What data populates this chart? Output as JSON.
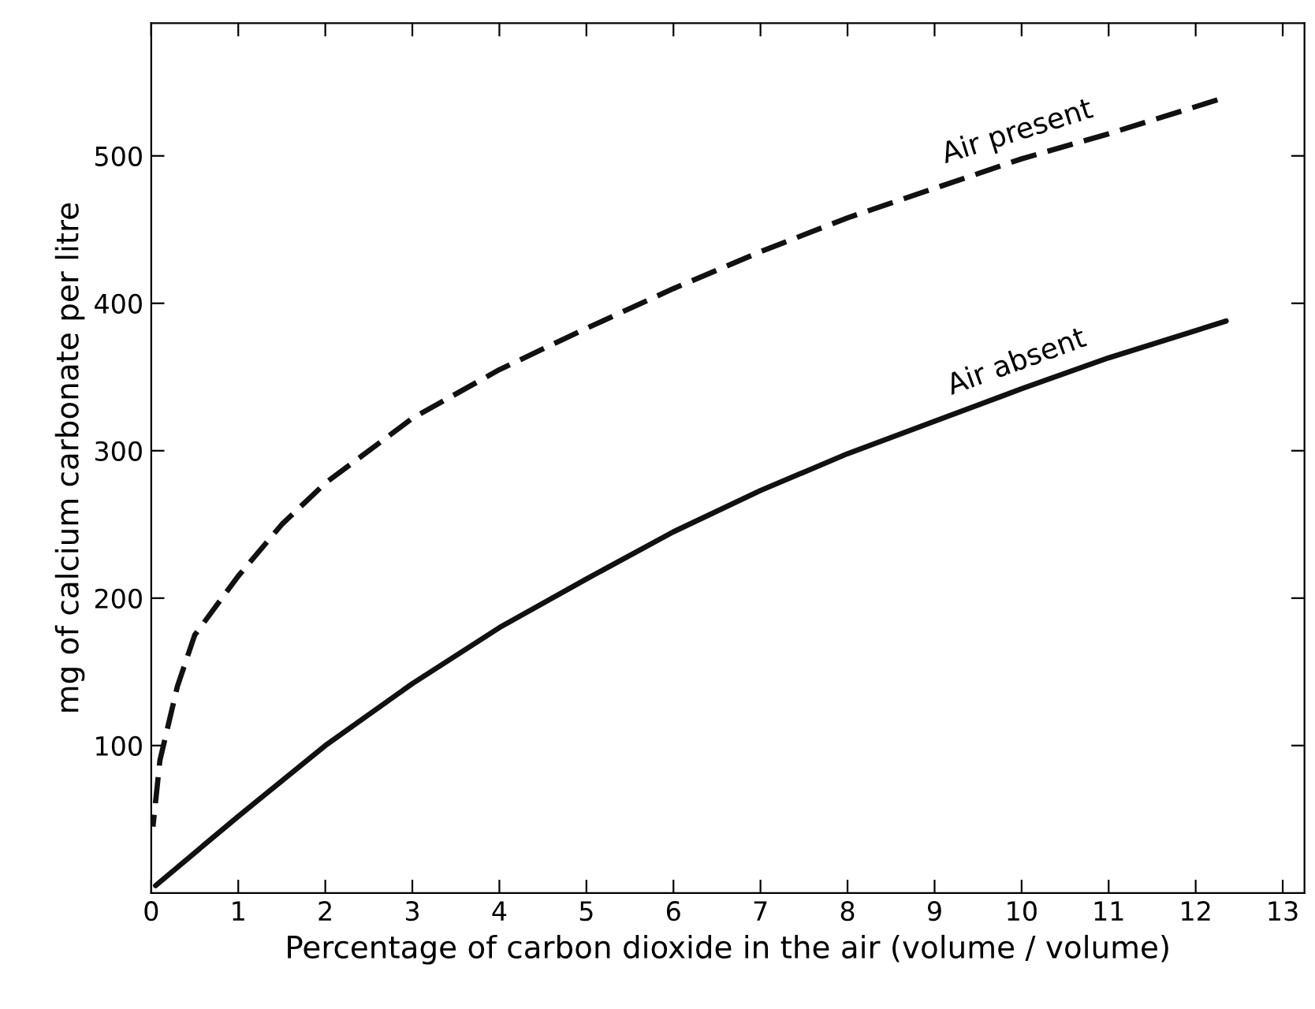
{
  "chart_data": {
    "type": "line",
    "xlabel": "Percentage of carbon dioxide in the air (volume / volume)",
    "ylabel": "mg of calcium carbonate per litre",
    "xlim": [
      0,
      13.25
    ],
    "ylim": [
      0,
      590
    ],
    "xticks": [
      0,
      1,
      2,
      3,
      4,
      5,
      6,
      7,
      8,
      9,
      10,
      11,
      12,
      13
    ],
    "yticks": [
      100,
      200,
      300,
      400,
      500
    ],
    "grid": false,
    "legend": false,
    "marker": "none",
    "series": [
      {
        "name": "Air present",
        "color": "#111111",
        "line_style": "dashed",
        "x": [
          0.02,
          0.1,
          0.3,
          0.5,
          1,
          1.5,
          2,
          3,
          4,
          5,
          6,
          7,
          8,
          9,
          10,
          11,
          12.25
        ],
        "values": [
          45,
          90,
          140,
          175,
          215,
          250,
          278,
          322,
          355,
          383,
          410,
          435,
          458,
          478,
          498,
          515,
          538
        ]
      },
      {
        "name": "Air absent",
        "color": "#111111",
        "line_style": "solid",
        "x": [
          0.05,
          1,
          2,
          3,
          4,
          5,
          6,
          7,
          8,
          9,
          10,
          11,
          12.35
        ],
        "values": [
          5,
          52,
          100,
          142,
          180,
          213,
          245,
          273,
          298,
          320,
          342,
          363,
          388
        ]
      }
    ]
  }
}
